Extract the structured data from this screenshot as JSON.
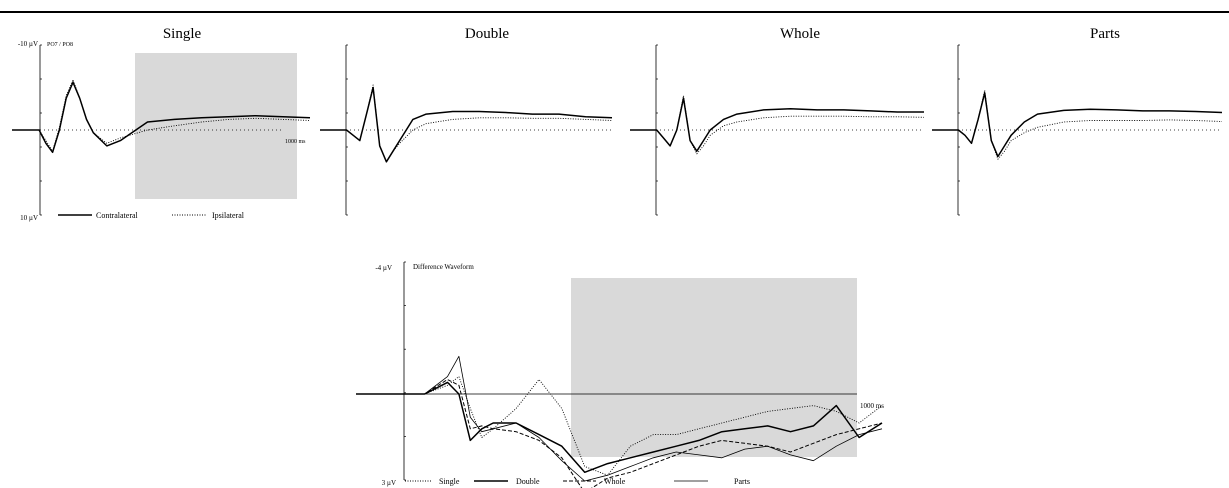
{
  "chart_data": [
    {
      "type": "line",
      "title": "Single",
      "electrode_label": "PO7 / PO8",
      "y_top_label": "-10 µV",
      "y_bottom_label": "10 µV",
      "x_end_label": "1000 ms",
      "xlim": [
        -100,
        1000
      ],
      "ylim": [
        -10,
        10
      ],
      "shaded_window": [
        100,
        1000
      ],
      "legend": [
        {
          "name": "Contralateral",
          "style": "solid"
        },
        {
          "name": "Ipsilateral",
          "style": "dotted"
        }
      ],
      "x": [
        -100,
        -50,
        0,
        25,
        50,
        75,
        100,
        125,
        150,
        175,
        200,
        250,
        300,
        400,
        500,
        600,
        700,
        800,
        900,
        1000
      ],
      "series": [
        {
          "name": "Contralateral",
          "style": "solid",
          "values": [
            0,
            0,
            0,
            -2.5,
            -4.2,
            0,
            6,
            9,
            6,
            2,
            -0.5,
            -3,
            -2,
            1.5,
            2,
            2.3,
            2.5,
            2.7,
            2.5,
            2.3
          ]
        },
        {
          "name": "Ipsilateral",
          "style": "dotted",
          "values": [
            0,
            0,
            0,
            -2,
            -4,
            0.5,
            6.5,
            9.5,
            6,
            2,
            -0.5,
            -2.5,
            -1.5,
            0,
            0.8,
            1.5,
            2,
            2.2,
            2,
            1.8
          ]
        }
      ]
    },
    {
      "type": "line",
      "title": "Double",
      "xlim": [
        -100,
        1000
      ],
      "ylim": [
        -10,
        10
      ],
      "x": [
        -100,
        -50,
        0,
        25,
        50,
        75,
        100,
        125,
        150,
        175,
        200,
        250,
        300,
        400,
        500,
        600,
        700,
        800,
        900,
        1000
      ],
      "series": [
        {
          "name": "Contralateral",
          "style": "solid",
          "values": [
            0,
            0,
            0,
            -1,
            -2,
            3,
            8,
            -3,
            -6,
            -4,
            -2,
            2,
            3,
            3.5,
            3.5,
            3.3,
            3,
            3,
            2.5,
            2.3
          ]
        },
        {
          "name": "Ipsilateral",
          "style": "dotted",
          "values": [
            0,
            0,
            0,
            -1,
            -2,
            3,
            8.5,
            -3,
            -6,
            -4,
            -2.5,
            0,
            1.2,
            2,
            2.3,
            2.3,
            2.2,
            2.2,
            2,
            1.8
          ]
        }
      ]
    },
    {
      "type": "line",
      "title": "Whole",
      "xlim": [
        -100,
        1000
      ],
      "ylim": [
        -10,
        10
      ],
      "x": [
        -100,
        -50,
        0,
        25,
        50,
        75,
        100,
        125,
        150,
        175,
        200,
        250,
        300,
        400,
        500,
        600,
        700,
        800,
        900,
        1000
      ],
      "series": [
        {
          "name": "Contralateral",
          "style": "solid",
          "values": [
            0,
            0,
            0,
            -1.5,
            -3,
            0,
            6,
            -2,
            -4,
            -2,
            0,
            2,
            3,
            3.8,
            4,
            3.8,
            3.8,
            3.6,
            3.4,
            3.4
          ]
        },
        {
          "name": "Ipsilateral",
          "style": "dotted",
          "values": [
            0,
            0,
            0,
            -1.5,
            -3,
            0,
            6.5,
            -2,
            -4.5,
            -3,
            -1,
            0.8,
            1.5,
            2.3,
            2.6,
            2.6,
            2.6,
            2.5,
            2.5,
            2.4
          ]
        }
      ]
    },
    {
      "type": "line",
      "title": "Parts",
      "xlim": [
        -100,
        1000
      ],
      "ylim": [
        -10,
        10
      ],
      "x": [
        -100,
        -50,
        0,
        25,
        50,
        75,
        100,
        125,
        150,
        175,
        200,
        250,
        300,
        400,
        500,
        600,
        700,
        800,
        900,
        1000
      ],
      "series": [
        {
          "name": "Contralateral",
          "style": "solid",
          "values": [
            0,
            0,
            0,
            -1,
            -2.5,
            2,
            7,
            -2,
            -5,
            -3,
            -1,
            1.5,
            3,
            3.7,
            3.9,
            3.8,
            3.6,
            3.6,
            3.5,
            3.3
          ]
        },
        {
          "name": "Ipsilateral",
          "style": "dotted",
          "values": [
            0,
            0,
            0,
            -1,
            -2.5,
            2,
            7.5,
            -2,
            -5.5,
            -4,
            -2,
            -0.5,
            0.5,
            1.5,
            1.8,
            1.8,
            1.8,
            1.9,
            1.8,
            1.6
          ]
        }
      ]
    },
    {
      "type": "line",
      "title": "Difference Waveform",
      "y_top_label": "-4 µV",
      "y_bottom_label": "3 µV",
      "x_end_label": "1000 ms",
      "xlim": [
        -100,
        1000
      ],
      "ylim": [
        -4,
        3
      ],
      "shaded_window": [
        300,
        1000
      ],
      "x": [
        -100,
        -50,
        0,
        50,
        100,
        125,
        150,
        175,
        200,
        250,
        300,
        350,
        400,
        450,
        500,
        550,
        600,
        650,
        700,
        750,
        800,
        850,
        900,
        950,
        1000,
        1050
      ],
      "series": [
        {
          "name": "Single",
          "style": "dotted",
          "values": [
            0,
            0,
            0,
            0,
            0.3,
            0.6,
            -0.5,
            -1.5,
            -1.2,
            -0.5,
            0.5,
            -0.5,
            -2.5,
            -2.8,
            -1.8,
            -1.4,
            -1.4,
            -1.2,
            -1,
            -0.8,
            -0.6,
            -0.5,
            -0.4,
            -0.6,
            -1,
            -0.4
          ]
        },
        {
          "name": "Double",
          "style": "solid",
          "values": [
            0,
            0,
            0,
            0,
            0.4,
            0,
            -1.6,
            -1.2,
            -1,
            -1,
            -1.4,
            -1.8,
            -2.7,
            -2.4,
            -2.2,
            -2,
            -1.8,
            -1.6,
            -1.3,
            -1.2,
            -1.1,
            -1.3,
            -1.1,
            -0.4,
            -1.5,
            -1
          ]
        },
        {
          "name": "Whole",
          "style": "dashed",
          "values": [
            0,
            0,
            0,
            0,
            0.5,
            0.3,
            -1.2,
            -1.1,
            -1.2,
            -1.3,
            -1.6,
            -2.2,
            -3.4,
            -2.9,
            -2.7,
            -2.4,
            -2.1,
            -1.8,
            -1.6,
            -1.7,
            -1.8,
            -2,
            -1.7,
            -1.4,
            -1.2,
            -1
          ]
        },
        {
          "name": "Parts",
          "style": "solid-thin",
          "values": [
            0,
            0,
            0,
            0,
            0.6,
            1.3,
            -0.8,
            -1.3,
            -1.2,
            -1,
            -1.5,
            -2.3,
            -3,
            -2.8,
            -2.5,
            -2.2,
            -2,
            -2.1,
            -2.2,
            -1.9,
            -1.8,
            -2.1,
            -2.3,
            -1.8,
            -1.4,
            -1.2
          ]
        }
      ],
      "legend": [
        {
          "name": "Single",
          "style": "dotted"
        },
        {
          "name": "Double",
          "style": "solid"
        },
        {
          "name": "Whole",
          "style": "dashed"
        },
        {
          "name": "Parts",
          "style": "solid-thin"
        }
      ]
    }
  ]
}
